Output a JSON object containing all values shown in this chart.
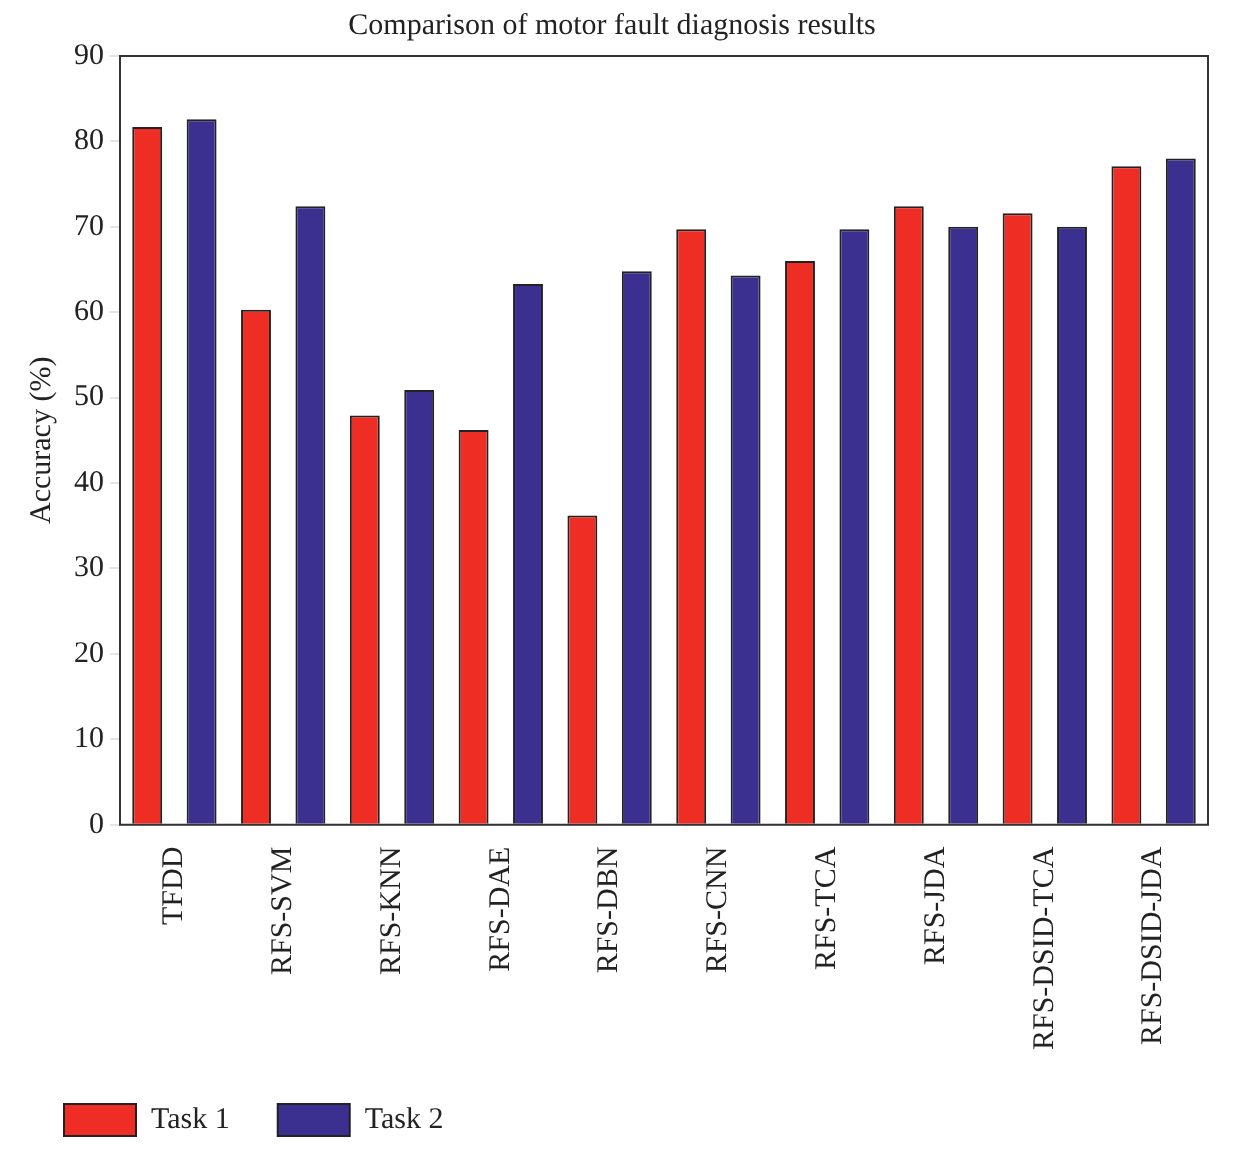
{
  "chart_data": {
    "type": "bar",
    "title": "Comparison of motor fault diagnosis results",
    "ylabel": "Accuracy (%)",
    "categories": [
      "TFDD",
      "RFS-SVM",
      "RFS-KNN",
      "RFS-DAE",
      "RFS-DBN",
      "RFS-CNN",
      "RFS-TCA",
      "RFS-JDA",
      "RFS-DSID-TCA",
      "RFS-DSID-JDA"
    ],
    "series": [
      {
        "name": "Task 1",
        "color": "#ee2d24",
        "values": [
          81.7,
          60.3,
          47.9,
          46.2,
          36.2,
          69.7,
          66.0,
          72.4,
          71.6,
          77.1
        ]
      },
      {
        "name": "Task 2",
        "color": "#3b2f8f",
        "values": [
          82.6,
          72.4,
          50.9,
          63.3,
          64.8,
          64.3,
          69.7,
          70.0,
          70.0,
          78.0
        ]
      }
    ],
    "ylim": [
      0,
      90
    ],
    "yticks": [
      0,
      10,
      20,
      30,
      40,
      50,
      60,
      70,
      80,
      90
    ],
    "grid": false,
    "legend": "bottom left"
  }
}
